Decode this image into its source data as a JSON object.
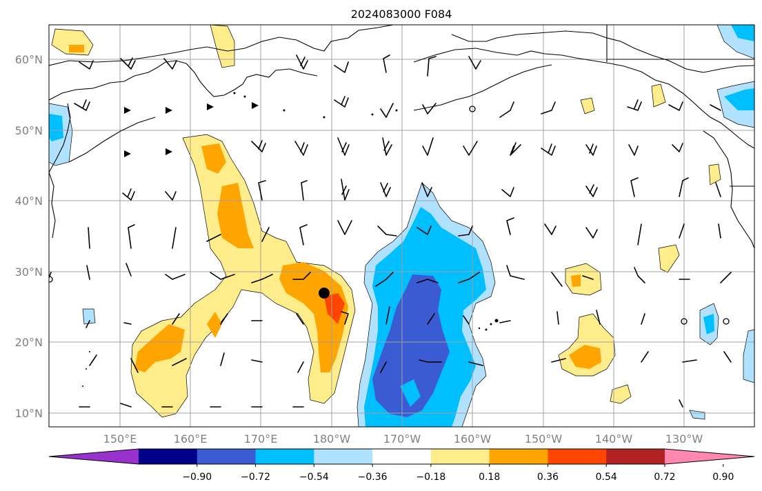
{
  "title": "2024083000 F084",
  "map": {
    "lat_labels": [
      "10°N",
      "20°N",
      "30°N",
      "40°N",
      "50°N",
      "60°N"
    ],
    "lon_labels": [
      "150°E",
      "160°E",
      "170°E",
      "180°W",
      "170°W",
      "160°W",
      "150°W",
      "140°W",
      "130°W"
    ],
    "gridline_color": "#a0a0a0",
    "coastline_color": "#000000",
    "marker": {
      "label": "storm-center-marker",
      "color": "#000000"
    }
  },
  "colorbar": {
    "tick_labels": [
      "−0.90",
      "−0.72",
      "−0.54",
      "−0.36",
      "−0.18",
      "0.18",
      "0.36",
      "0.54",
      "0.72",
      "0.90"
    ],
    "colors": [
      "#9932cc",
      "#00008b",
      "#3a5bd1",
      "#00bfff",
      "#b0e2ff",
      "#ffffff",
      "#ffec8b",
      "#ffa500",
      "#ff4500",
      "#b22222",
      "#ff88b0"
    ]
  }
}
